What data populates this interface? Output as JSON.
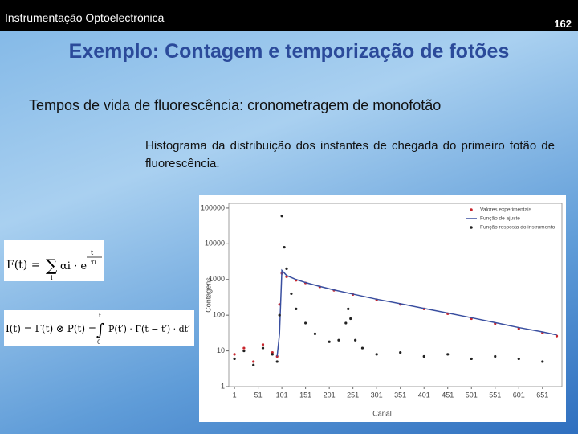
{
  "header": {
    "course": "Instrumentação Optoelectrónica",
    "page": "162"
  },
  "title": "Exemplo: Contagem e temporização de fotões",
  "subtitle": "Tempos de vida de fluorescência: cronometragem de monofotão",
  "caption": "Histograma da distribuição dos instantes de chegada do primeiro fotão de fluorescência.",
  "equations": [
    [
      "F(t) =",
      "∑",
      "i",
      "αi · e",
      "t",
      "τi"
    ],
    [
      "I(t) = Γ(t) ⊗ P(t) =",
      "∫",
      "t",
      "0",
      "P(t′) · Γ(t − t′) · dt′"
    ]
  ],
  "chart_data": {
    "type": "scatter",
    "x_label": "Canal",
    "y_label": "Contagens",
    "xlim": [
      -11,
      692
    ],
    "xticks": [
      1,
      51,
      101,
      151,
      201,
      251,
      301,
      351,
      401,
      451,
      501,
      551,
      601,
      651
    ],
    "ylim": [
      1,
      136000
    ],
    "yticks": [
      1,
      10,
      100,
      1000,
      10000,
      100000
    ],
    "log_y": true,
    "legend": "upper right",
    "series": [
      {
        "name": "Valores experimentais",
        "color": "#c8252c",
        "mode": "markers",
        "x": [
          1,
          21,
          41,
          61,
          81,
          91,
          96,
          101,
          111,
          131,
          151,
          181,
          211,
          251,
          301,
          351,
          401,
          451,
          501,
          551,
          601,
          651,
          681
        ],
        "values": [
          8,
          12,
          5,
          15,
          9,
          7,
          200,
          1500,
          1200,
          950,
          800,
          620,
          500,
          380,
          270,
          200,
          150,
          110,
          80,
          58,
          42,
          32,
          26
        ]
      },
      {
        "name": "Função de ajuste",
        "color": "#3a4fa0",
        "mode": "line",
        "x": [
          91,
          96,
          101,
          111,
          131,
          151,
          181,
          211,
          251,
          301,
          351,
          401,
          451,
          501,
          551,
          601,
          651,
          681
        ],
        "values": [
          7,
          30,
          1800,
          1300,
          1000,
          820,
          640,
          510,
          390,
          280,
          210,
          155,
          115,
          85,
          62,
          45,
          34,
          28
        ]
      },
      {
        "name": "Função resposta do instrumento",
        "color": "#222222",
        "mode": "markers",
        "x": [
          1,
          21,
          41,
          61,
          81,
          91,
          96,
          101,
          106,
          111,
          121,
          131,
          151,
          171,
          201,
          221,
          236,
          241,
          246,
          256,
          271,
          301,
          351,
          401,
          451,
          501,
          551,
          601,
          651
        ],
        "values": [
          6,
          10,
          4,
          12,
          8,
          5,
          100,
          60000,
          8000,
          2000,
          400,
          150,
          60,
          30,
          18,
          20,
          60,
          150,
          80,
          20,
          12,
          8,
          9,
          7,
          8,
          6,
          7,
          6,
          5
        ]
      }
    ]
  }
}
